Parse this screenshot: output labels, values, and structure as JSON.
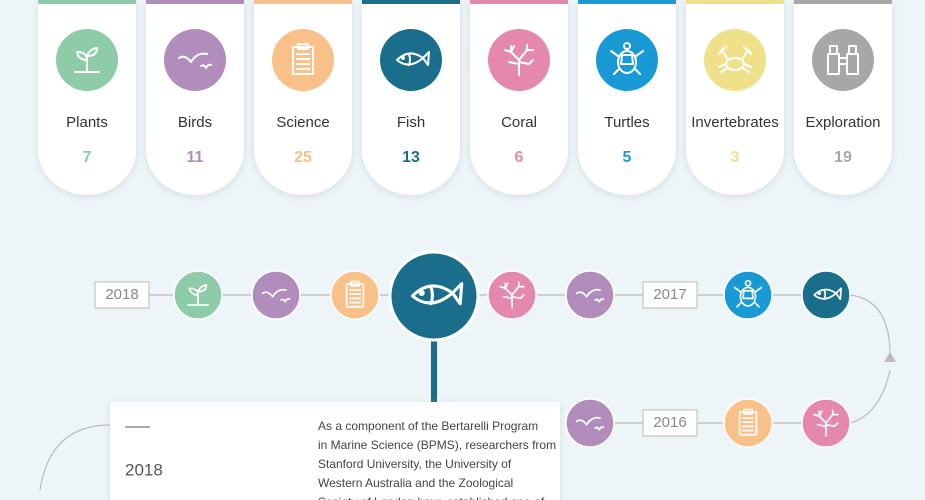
{
  "categories": [
    {
      "name": "Plants",
      "count": 7,
      "color": "#8ecba8"
    },
    {
      "name": "Birds",
      "count": 11,
      "color": "#b08dba"
    },
    {
      "name": "Science",
      "count": 25,
      "color": "#f9c189"
    },
    {
      "name": "Fish",
      "count": 13,
      "color": "#1b6e8b"
    },
    {
      "name": "Coral",
      "count": 6,
      "color": "#e489ad"
    },
    {
      "name": "Turtles",
      "count": 5,
      "color": "#1a9ad4"
    },
    {
      "name": "Invertebrates",
      "count": 3,
      "color": "#efe08a"
    },
    {
      "name": "Exploration",
      "count": 19,
      "color": "#a7a7a7"
    }
  ],
  "timeline": {
    "years": [
      "2018",
      "2017",
      "2016"
    ]
  },
  "detail": {
    "year": "2018",
    "text": [
      "As a component of the Bertarelli Program",
      "in Marine Science (BPMS), researchers from",
      "Stanford University, the University of",
      "Western Australia and the Zoological",
      "Society of London have established one of"
    ]
  }
}
